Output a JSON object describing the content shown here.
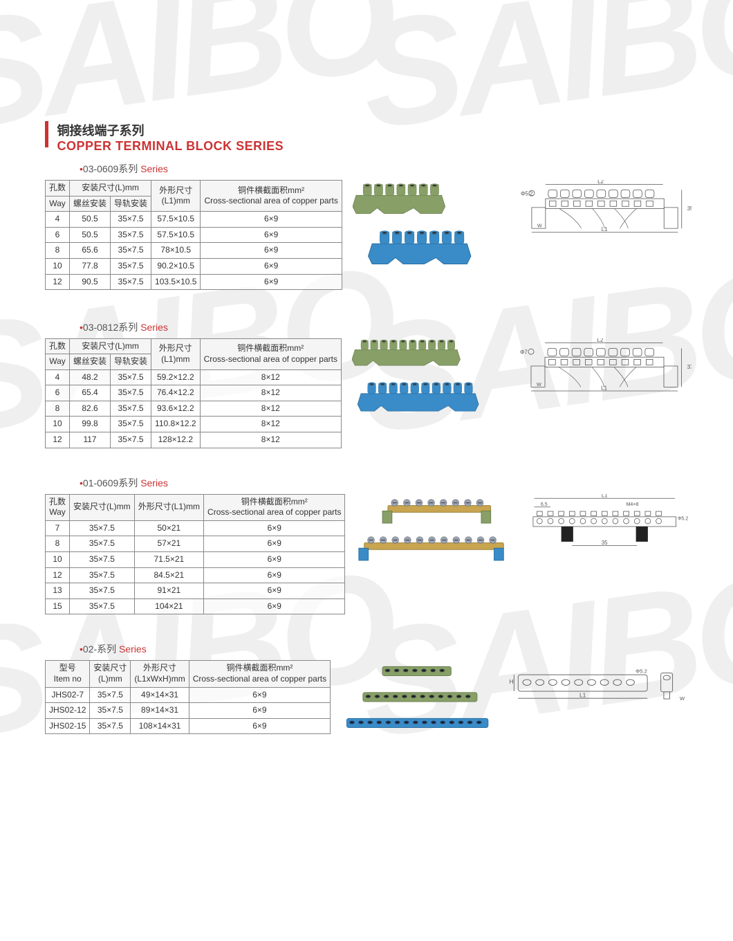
{
  "colors": {
    "accent": "#c33",
    "border": "#888",
    "text": "#333",
    "prod_green": "#88a068",
    "prod_green_dark": "#6b8050",
    "prod_blue": "#3a8cc8",
    "prod_blue_dark": "#2a6fa0",
    "brass": "#c9a550",
    "diagram_line": "#555",
    "screw": "#9aa5b0"
  },
  "title": {
    "cn": "铜接线端子系列",
    "en": "COPPER TERMINAL BLOCK  SERIES"
  },
  "sections": [
    {
      "name_code": "03-0609",
      "name_cn_suffix": "系列",
      "name_en": "Series",
      "header_mode": "split4",
      "headers": {
        "way_cn": "孔数",
        "way_en": "Way",
        "install_cn": "安装尺寸(L)mm",
        "screw_cn": "螺丝安装",
        "rail_cn": "导轨安装",
        "outline_cn": "外形尺寸",
        "outline_unit": "(L1)mm",
        "cross_cn": "铜件横截面积mm²",
        "cross_en": "Cross-sectional area of copper parts"
      },
      "rows": [
        {
          "way": "4",
          "screw": "50.5",
          "rail": "35×7.5",
          "l1": "57.5×10.5",
          "cs": "6×9"
        },
        {
          "way": "6",
          "screw": "50.5",
          "rail": "35×7.5",
          "l1": "57.5×10.5",
          "cs": "6×9"
        },
        {
          "way": "8",
          "screw": "65.6",
          "rail": "35×7.5",
          "l1": "78×10.5",
          "cs": "6×9"
        },
        {
          "way": "10",
          "screw": "77.8",
          "rail": "35×7.5",
          "l1": "90.2×10.5",
          "cs": "6×9"
        },
        {
          "way": "12",
          "screw": "90.5",
          "rail": "35×7.5",
          "l1": "103.5×10.5",
          "cs": "6×9"
        }
      ],
      "diagram": {
        "phi": "Φ5.2",
        "h": "35",
        "labels": [
          "L2",
          "L1",
          "W"
        ]
      }
    },
    {
      "name_code": "03-0812",
      "name_cn_suffix": "系列",
      "name_en": "Series",
      "header_mode": "split4",
      "headers": {
        "way_cn": "孔数",
        "way_en": "Way",
        "install_cn": "安装尺寸(L)mm",
        "screw_cn": "螺丝安装",
        "rail_cn": "导轨安装",
        "outline_cn": "外形尺寸",
        "outline_unit": "(L1)mm",
        "cross_cn": "铜件横截面积mm²",
        "cross_en": "Cross-sectional area of copper parts"
      },
      "rows": [
        {
          "way": "4",
          "screw": "48.2",
          "rail": "35×7.5",
          "l1": "59.2×12.2",
          "cs": "8×12"
        },
        {
          "way": "6",
          "screw": "65.4",
          "rail": "35×7.5",
          "l1": "76.4×12.2",
          "cs": "8×12"
        },
        {
          "way": "8",
          "screw": "82.6",
          "rail": "35×7.5",
          "l1": "93.6×12.2",
          "cs": "8×12"
        },
        {
          "way": "10",
          "screw": "99.8",
          "rail": "35×7.5",
          "l1": "110.8×12.2",
          "cs": "8×12"
        },
        {
          "way": "12",
          "screw": "117",
          "rail": "35×7.5",
          "l1": "128×12.2",
          "cs": "8×12"
        }
      ],
      "diagram": {
        "phi": "Φ7",
        "h": "37",
        "labels": [
          "L2",
          "L1",
          "W"
        ]
      }
    },
    {
      "name_code": "01-0609",
      "name_cn_suffix": "系列",
      "name_en": "Series",
      "header_mode": "simple3",
      "headers": {
        "way_cn": "孔数",
        "way_en": "Way",
        "install_cn": "安装尺寸(L)mm",
        "outline_cn": "外形尺寸(L1)mm",
        "cross_cn": "铜件横截面积mm²",
        "cross_en": "Cross-sectional area of copper parts"
      },
      "rows": [
        {
          "way": "7",
          "install": "35×7.5",
          "l1": "50×21",
          "cs": "6×9"
        },
        {
          "way": "8",
          "install": "35×7.5",
          "l1": "57×21",
          "cs": "6×9"
        },
        {
          "way": "10",
          "install": "35×7.5",
          "l1": "71.5×21",
          "cs": "6×9"
        },
        {
          "way": "12",
          "install": "35×7.5",
          "l1": "84.5×21",
          "cs": "6×9"
        },
        {
          "way": "13",
          "install": "35×7.5",
          "l1": "91×21",
          "cs": "6×9"
        },
        {
          "way": "15",
          "install": "35×7.5",
          "l1": "104×21",
          "cs": "6×9"
        }
      ],
      "diagram": {
        "labels": [
          "L1",
          "6.5",
          "M4×8",
          "Φ5.2",
          "35"
        ]
      }
    },
    {
      "name_code": "02-",
      "name_cn_suffix": "系列",
      "name_en": "Series",
      "header_mode": "item",
      "headers": {
        "item_cn": "型号",
        "item_en": "Item no",
        "install_cn": "安装尺寸",
        "install_unit": "(L)mm",
        "outline_cn": "外形尺寸",
        "outline_unit": "(L1xWxH)mm",
        "cross_cn": "铜件横截面积mm²",
        "cross_en": "Cross-sectional area of copper parts"
      },
      "rows": [
        {
          "item": "JHS02-7",
          "install": "35×7.5",
          "l1": "49×14×31",
          "cs": "6×9"
        },
        {
          "item": "JHS02-12",
          "install": "35×7.5",
          "l1": "89×14×31",
          "cs": "6×9"
        },
        {
          "item": "JHS02-15",
          "install": "35×7.5",
          "l1": "108×14×31",
          "cs": "6×9"
        }
      ],
      "diagram": {
        "labels": [
          "H",
          "L1",
          "W",
          "Φ5.2"
        ]
      }
    }
  ],
  "watermark_text": "SAIBO"
}
